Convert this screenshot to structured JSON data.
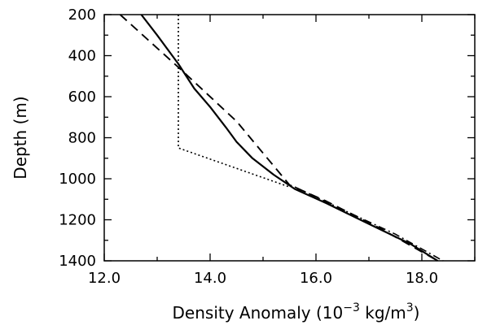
{
  "chart_data": {
    "type": "line",
    "xlabel": "Density Anomaly (10",
    "xlabel_exponent": "−3",
    "xlabel_units": " kg/m",
    "xlabel_units_exponent": "3",
    "xlabel_close": ")",
    "ylabel": "Depth (m)",
    "xlim": [
      12.0,
      19.0
    ],
    "ylim": [
      200,
      1400
    ],
    "y_inverted": true,
    "x_ticks": [
      12.0,
      14.0,
      16.0,
      18.0
    ],
    "x_tick_labels": [
      "12.0",
      "14.0",
      "16.0",
      "18.0"
    ],
    "x_minor_step": 1.0,
    "y_ticks": [
      200,
      400,
      600,
      800,
      1000,
      1200,
      1400
    ],
    "y_tick_labels": [
      "200",
      "400",
      "600",
      "800",
      "1000",
      "1200",
      "1400"
    ],
    "y_minor_step": 100,
    "grid": false,
    "series": [
      {
        "style": "solid",
        "color": "#000000",
        "x": [
          12.7,
          13.0,
          13.4,
          13.7,
          14.0,
          14.3,
          14.5,
          14.8,
          15.2,
          15.6,
          16.2,
          17.0,
          17.8,
          18.3
        ],
        "y": [
          200,
          300,
          440,
          560,
          650,
          750,
          820,
          900,
          980,
          1050,
          1120,
          1220,
          1320,
          1400
        ]
      },
      {
        "style": "dashed",
        "color": "#000000",
        "x": [
          12.3,
          13.5,
          14.5,
          15.5,
          16.2,
          17.2,
          18.3
        ],
        "y": [
          200,
          480,
          720,
          1030,
          1110,
          1240,
          1400
        ]
      },
      {
        "style": "dotted",
        "color": "#000000",
        "x": [
          13.4,
          13.4,
          15.5
        ],
        "y": [
          200,
          850,
          1040
        ]
      },
      {
        "style": "dashdot",
        "color": "#000000",
        "x": [
          15.6,
          16.5,
          17.5,
          18.4
        ],
        "y": [
          1040,
          1150,
          1270,
          1400
        ]
      }
    ]
  }
}
